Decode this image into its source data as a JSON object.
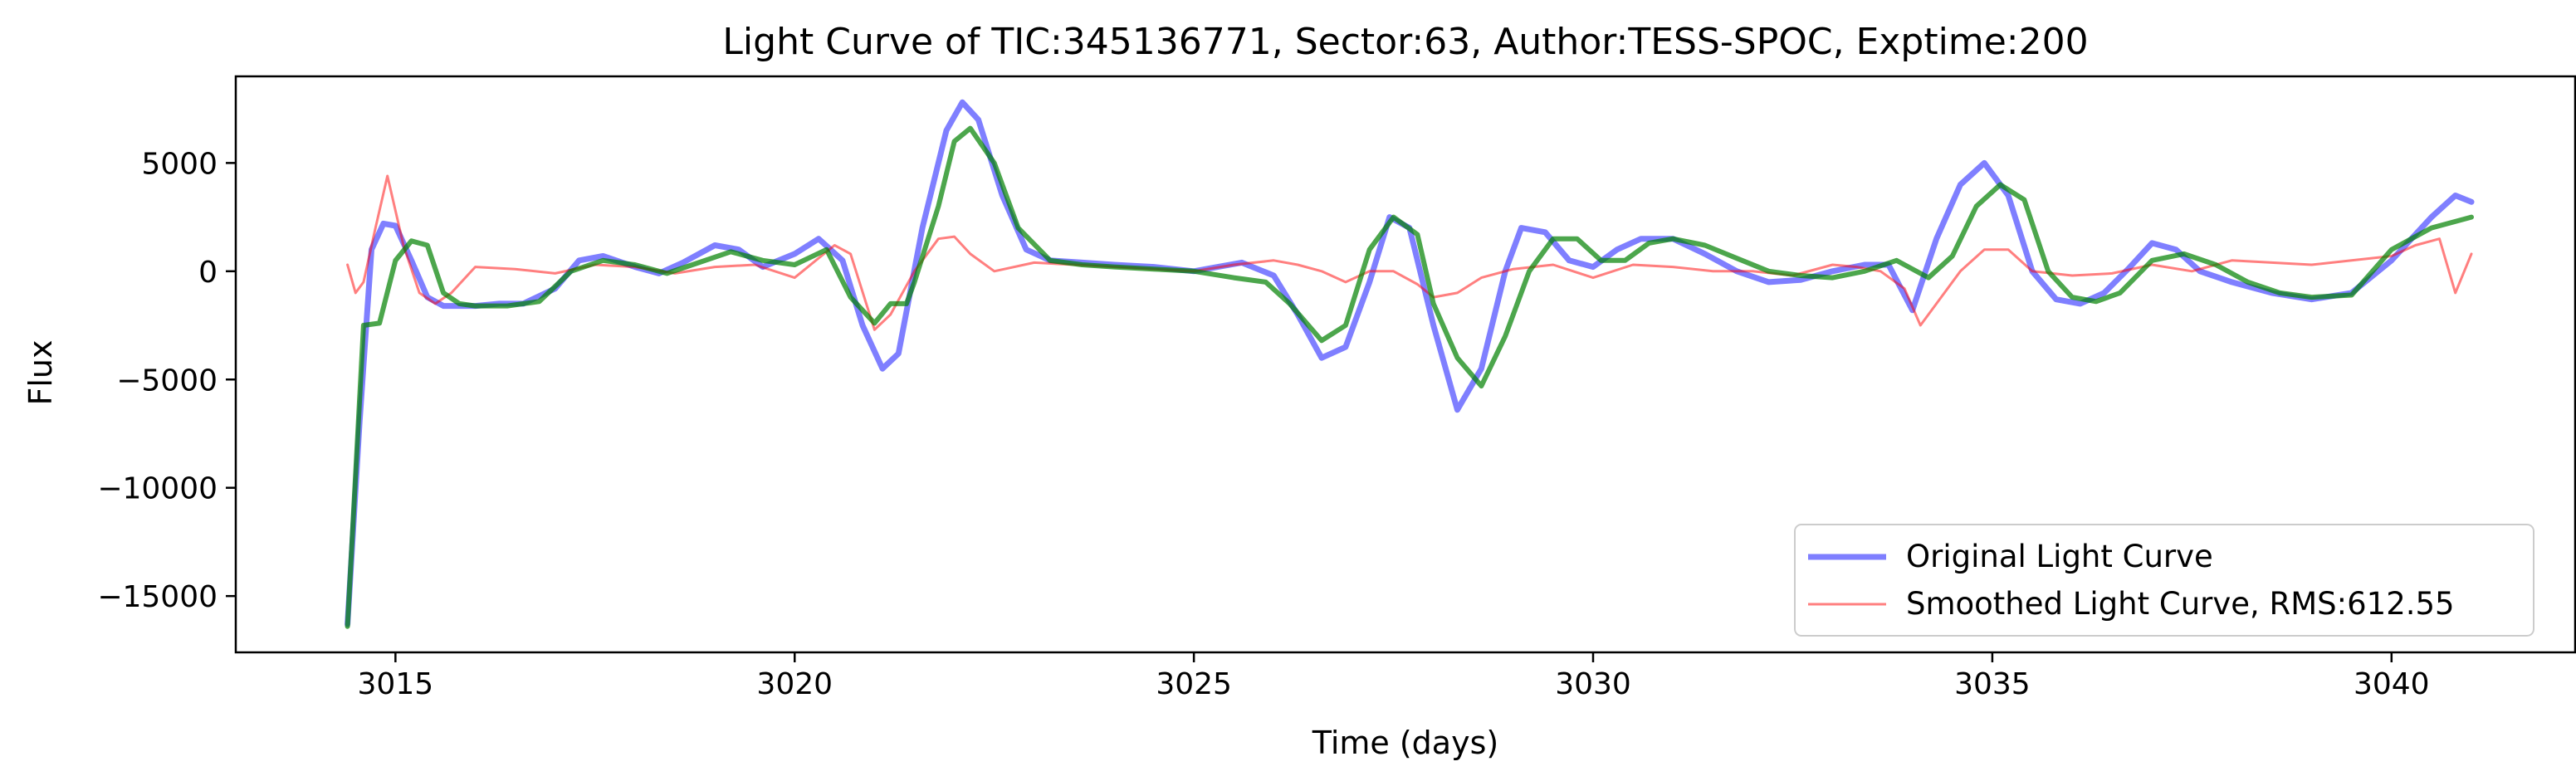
{
  "chart_data": {
    "type": "line",
    "title": "Light Curve of TIC:345136771, Sector:63, Author:TESS-SPOC, Exptime:200",
    "xlabel": "Time (days)",
    "ylabel": "Flux",
    "xlim": [
      3013.0,
      3042.3
    ],
    "ylim": [
      -17600,
      9000
    ],
    "xticks": [
      3015,
      3020,
      3025,
      3030,
      3035,
      3040
    ],
    "xtick_labels": [
      "3015",
      "3020",
      "3025",
      "3030",
      "3035",
      "3040"
    ],
    "yticks": [
      -15000,
      -10000,
      -5000,
      0,
      5000
    ],
    "ytick_labels": [
      "−15000",
      "−10000",
      "−5000",
      "0",
      "5000"
    ],
    "grid": false,
    "legend_position": "lower-right",
    "series": [
      {
        "name": "Original Light Curve",
        "color": "#0000ff",
        "opacity": 0.5,
        "x": [
          3014.4,
          3014.55,
          3014.7,
          3014.85,
          3015.0,
          3015.2,
          3015.4,
          3015.6,
          3015.8,
          3016.0,
          3016.3,
          3016.6,
          3017.0,
          3017.3,
          3017.6,
          3018.0,
          3018.3,
          3018.6,
          3019.0,
          3019.3,
          3019.6,
          3020.0,
          3020.3,
          3020.6,
          3020.85,
          3021.1,
          3021.3,
          3021.6,
          3021.9,
          3022.1,
          3022.3,
          3022.6,
          3022.9,
          3023.2,
          3023.6,
          3024.0,
          3024.5,
          3025.0,
          3025.3,
          3025.6,
          3026.0,
          3026.3,
          3026.6,
          3026.9,
          3027.2,
          3027.45,
          3027.7,
          3028.0,
          3028.3,
          3028.6,
          3028.9,
          3029.1,
          3029.4,
          3029.7,
          3030.0,
          3030.3,
          3030.6,
          3031.0,
          3031.4,
          3031.8,
          3032.2,
          3032.6,
          3033.0,
          3033.4,
          3033.7,
          3034.0,
          3034.3,
          3034.6,
          3034.9,
          3035.2,
          3035.5,
          3035.8,
          3036.1,
          3036.4,
          3036.7,
          3037.0,
          3037.3,
          3037.6,
          3038.0,
          3038.5,
          3039.0,
          3039.5,
          3040.0,
          3040.5,
          3040.8,
          3041.0
        ],
        "y": [
          -16300,
          -7000,
          1000,
          2200,
          2100,
          500,
          -1200,
          -1600,
          -1600,
          -1600,
          -1500,
          -1500,
          -800,
          500,
          700,
          200,
          -100,
          400,
          1200,
          1000,
          200,
          800,
          1500,
          500,
          -2500,
          -4500,
          -3800,
          2000,
          6500,
          7800,
          7000,
          3500,
          1000,
          500,
          400,
          300,
          200,
          0,
          200,
          400,
          -200,
          -2000,
          -4000,
          -3500,
          -500,
          2500,
          2000,
          -2500,
          -6400,
          -4500,
          0,
          2000,
          1800,
          500,
          200,
          1000,
          1500,
          1500,
          800,
          0,
          -500,
          -400,
          0,
          300,
          300,
          -1800,
          1500,
          4000,
          5000,
          3500,
          0,
          -1300,
          -1500,
          -1000,
          100,
          1300,
          1000,
          0,
          -500,
          -1000,
          -1300,
          -1000,
          500,
          2500,
          3500,
          3200
        ]
      },
      {
        "name": "Smoothed Light Curve, RMS:612.55",
        "color": "#ff0000",
        "opacity": 0.5,
        "x": [
          3014.4,
          3014.5,
          3014.6,
          3014.75,
          3014.9,
          3015.1,
          3015.3,
          3015.5,
          3015.7,
          3016.0,
          3016.5,
          3017.0,
          3017.5,
          3018.0,
          3018.5,
          3019.0,
          3019.5,
          3020.0,
          3020.5,
          3020.7,
          3021.0,
          3021.2,
          3021.5,
          3021.8,
          3022.0,
          3022.2,
          3022.5,
          3023.0,
          3023.5,
          3024.0,
          3024.5,
          3025.0,
          3025.5,
          3026.0,
          3026.3,
          3026.6,
          3026.9,
          3027.2,
          3027.5,
          3027.8,
          3028.0,
          3028.3,
          3028.6,
          3029.0,
          3029.5,
          3030.0,
          3030.5,
          3031.0,
          3031.5,
          3032.0,
          3032.5,
          3033.0,
          3033.3,
          3033.6,
          3033.9,
          3034.1,
          3034.3,
          3034.6,
          3034.9,
          3035.2,
          3035.5,
          3036.0,
          3036.5,
          3037.0,
          3037.5,
          3038.0,
          3038.5,
          3039.0,
          3039.5,
          3040.0,
          3040.3,
          3040.6,
          3040.8,
          3041.0
        ],
        "y": [
          300,
          -1000,
          -500,
          2000,
          4400,
          1200,
          -1000,
          -1500,
          -1000,
          200,
          100,
          -100,
          300,
          200,
          -100,
          200,
          300,
          -300,
          1200,
          800,
          -2700,
          -2000,
          0,
          1500,
          1600,
          800,
          0,
          400,
          300,
          200,
          100,
          0,
          300,
          500,
          300,
          0,
          -500,
          0,
          0,
          -600,
          -1200,
          -1000,
          -300,
          100,
          300,
          -300,
          300,
          200,
          0,
          0,
          -200,
          300,
          200,
          0,
          -800,
          -2500,
          -1500,
          0,
          1000,
          1000,
          0,
          -200,
          -100,
          300,
          0,
          500,
          400,
          300,
          500,
          700,
          1200,
          1500,
          -1000,
          800
        ]
      },
      {
        "name": "",
        "color": "#008000",
        "opacity": 0.7,
        "x": [
          3014.4,
          3014.6,
          3014.8,
          3015.0,
          3015.2,
          3015.4,
          3015.6,
          3015.8,
          3016.0,
          3016.4,
          3016.8,
          3017.2,
          3017.6,
          3018.0,
          3018.4,
          3018.8,
          3019.2,
          3019.6,
          3020.0,
          3020.4,
          3020.7,
          3021.0,
          3021.2,
          3021.4,
          3021.5,
          3021.8,
          3022.0,
          3022.2,
          3022.5,
          3022.8,
          3023.2,
          3023.6,
          3024.0,
          3024.5,
          3025.0,
          3025.5,
          3025.9,
          3026.2,
          3026.6,
          3026.9,
          3027.2,
          3027.5,
          3027.8,
          3028.0,
          3028.3,
          3028.6,
          3028.9,
          3029.2,
          3029.5,
          3029.8,
          3030.1,
          3030.4,
          3030.7,
          3031.0,
          3031.4,
          3031.8,
          3032.2,
          3032.6,
          3033.0,
          3033.4,
          3033.8,
          3034.2,
          3034.5,
          3034.8,
          3035.1,
          3035.4,
          3035.7,
          3036.0,
          3036.3,
          3036.6,
          3037.0,
          3037.4,
          3037.8,
          3038.2,
          3038.6,
          3039.0,
          3039.5,
          3040.0,
          3040.5,
          3041.0
        ],
        "y": [
          -16400,
          -2500,
          -2400,
          500,
          1400,
          1200,
          -1000,
          -1500,
          -1600,
          -1600,
          -1400,
          0,
          500,
          300,
          -100,
          400,
          900,
          500,
          300,
          1000,
          -1200,
          -2400,
          -1500,
          -1500,
          -500,
          3000,
          6000,
          6600,
          5000,
          2000,
          500,
          300,
          200,
          100,
          0,
          -300,
          -500,
          -1500,
          -3200,
          -2500,
          1000,
          2500,
          1700,
          -1500,
          -4000,
          -5300,
          -3000,
          0,
          1500,
          1500,
          500,
          500,
          1300,
          1500,
          1200,
          600,
          0,
          -200,
          -300,
          0,
          500,
          -300,
          700,
          3000,
          4000,
          3300,
          0,
          -1200,
          -1400,
          -1000,
          500,
          800,
          300,
          -500,
          -1000,
          -1200,
          -1100,
          1000,
          2000,
          2500
        ]
      }
    ],
    "legend": [
      {
        "label": "Original Light Curve",
        "color": "#0000ff",
        "opacity": 0.5,
        "linewidth": 7
      },
      {
        "label": "Smoothed Light Curve, RMS:612.55",
        "color": "#ff0000",
        "opacity": 0.5,
        "linewidth": 3
      }
    ]
  }
}
